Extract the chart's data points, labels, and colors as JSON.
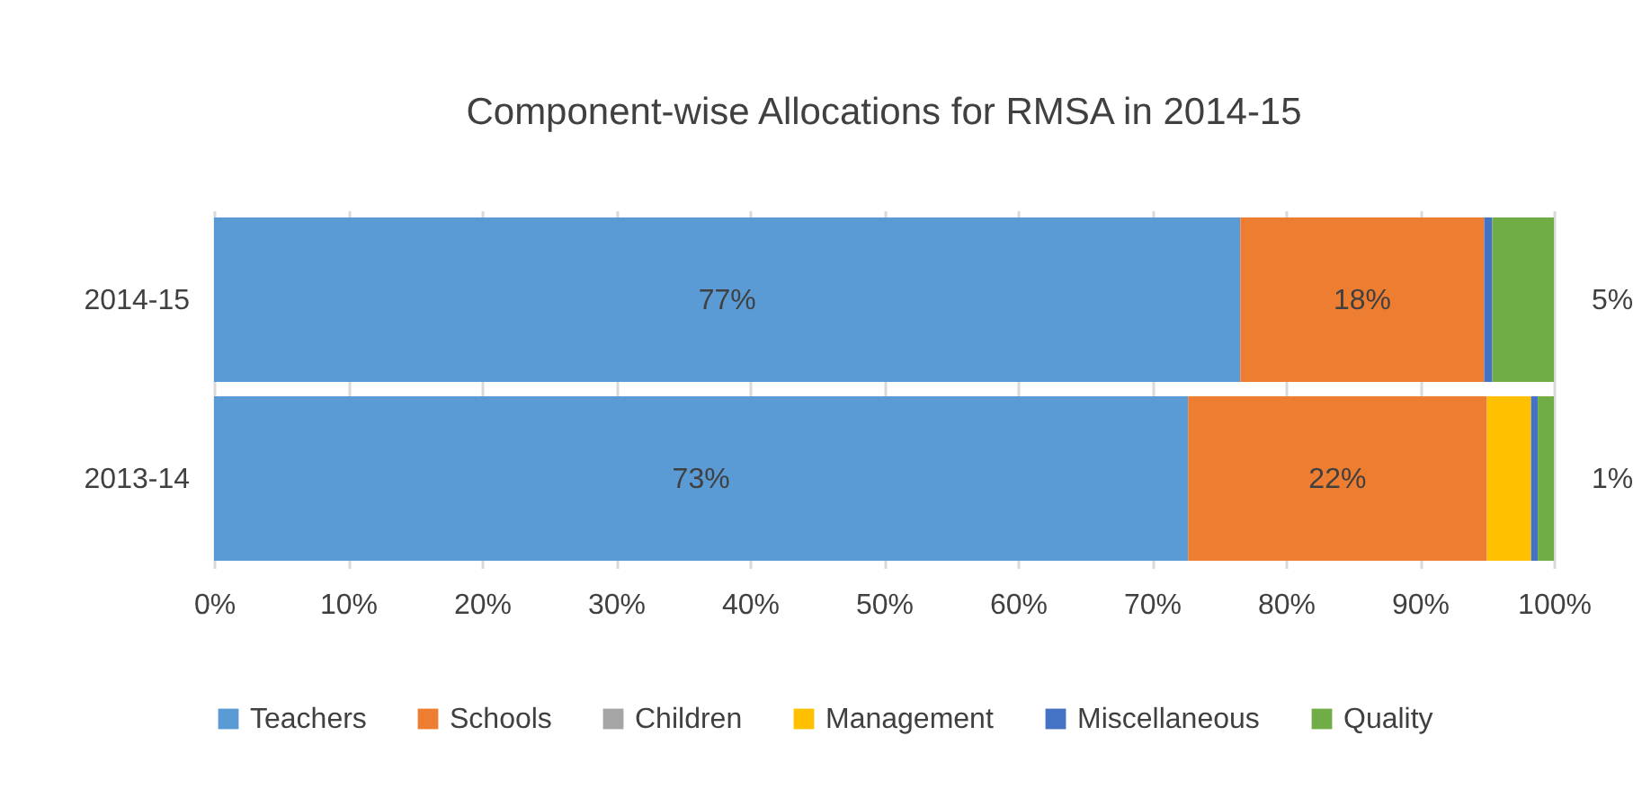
{
  "chart_data": {
    "type": "bar",
    "orientation": "horizontal",
    "stacked": true,
    "title": "Component-wise Allocations for RMSA in 2014-15",
    "categories": [
      "2014-15",
      "2013-14"
    ],
    "series": [
      {
        "name": "Teachers",
        "color": "#5b9bd5",
        "values": [
          76.6,
          72.7
        ],
        "value_labels": [
          "77%",
          "73%"
        ]
      },
      {
        "name": "Schools",
        "color": "#ed7d31",
        "values": [
          18.2,
          22.3
        ],
        "value_labels": [
          "18%",
          "22%"
        ]
      },
      {
        "name": "Children",
        "color": "#a5a5a5",
        "values": [
          0,
          0
        ]
      },
      {
        "name": "Management",
        "color": "#ffc000",
        "values": [
          0,
          3.3
        ]
      },
      {
        "name": "Miscellaneous",
        "color": "#4472c4",
        "values": [
          0.6,
          0.5
        ]
      },
      {
        "name": "Quality",
        "color": "#70ad47",
        "values": [
          4.6,
          1.2
        ],
        "value_labels": [
          "5%",
          "1%"
        ]
      }
    ],
    "xlim": [
      0,
      100
    ],
    "xticks": [
      {
        "value": 0,
        "label": "0%"
      },
      {
        "value": 10,
        "label": "10%"
      },
      {
        "value": 20,
        "label": "20%"
      },
      {
        "value": 30,
        "label": "30%"
      },
      {
        "value": 40,
        "label": "40%"
      },
      {
        "value": 50,
        "label": "50%"
      },
      {
        "value": 60,
        "label": "60%"
      },
      {
        "value": 70,
        "label": "70%"
      },
      {
        "value": 80,
        "label": "80%"
      },
      {
        "value": 90,
        "label": "90%"
      },
      {
        "value": 100,
        "label": "100%"
      }
    ],
    "grid": "x",
    "legend": "bottom"
  }
}
